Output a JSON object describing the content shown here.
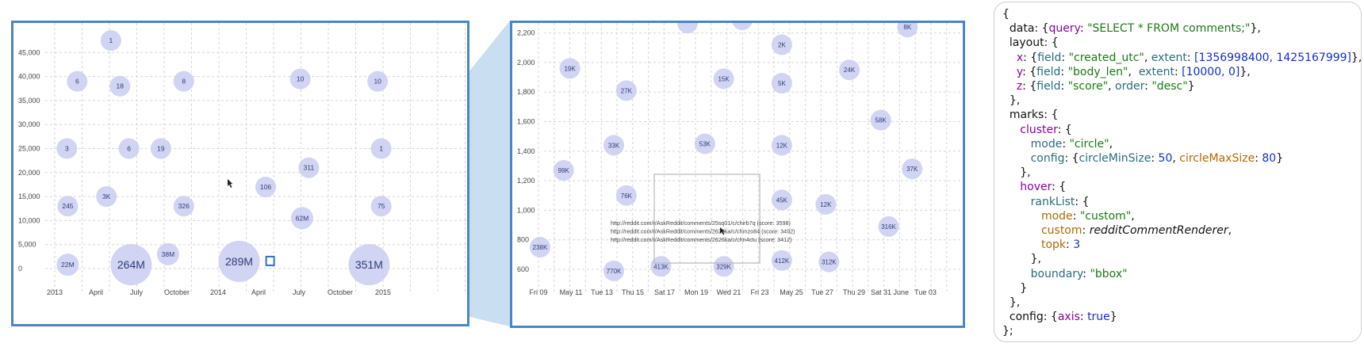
{
  "colors": {
    "panel_border": "#4a86c6",
    "bubble_fill": "#c9cdf0",
    "bubble_text": "#2f3a7a",
    "zoom_fill": "#bcd6ee"
  },
  "chart_data": [
    {
      "type": "scatter",
      "title": "",
      "xlabel": "",
      "ylabel": "",
      "ylim": [
        0,
        48000
      ],
      "grid": true,
      "x_ticks": [
        "2013",
        "April",
        "July",
        "October",
        "2014",
        "April",
        "July",
        "October",
        "2015"
      ],
      "y_ticks": [
        "0",
        "5,000",
        "10,000",
        "15,000",
        "20,000",
        "25,000",
        "30,000",
        "35,000",
        "40,000",
        "45,000"
      ],
      "points": [
        {
          "x": "2013-05-06",
          "y": 47500,
          "label": "1"
        },
        {
          "x": "2013-02-20",
          "y": 39000,
          "label": "6"
        },
        {
          "x": "2013-05-26",
          "y": 38000,
          "label": "18"
        },
        {
          "x": "2013-10-15",
          "y": 39000,
          "label": "8"
        },
        {
          "x": "2014-07-01",
          "y": 39500,
          "label": "10"
        },
        {
          "x": "2014-12-20",
          "y": 39000,
          "label": "10"
        },
        {
          "x": "2013-01-28",
          "y": 25000,
          "label": "3"
        },
        {
          "x": "2013-06-15",
          "y": 25000,
          "label": "6"
        },
        {
          "x": "2013-08-25",
          "y": 25000,
          "label": "19"
        },
        {
          "x": "2014-07-20",
          "y": 21000,
          "label": "311"
        },
        {
          "x": "2014-12-28",
          "y": 25000,
          "label": "1"
        },
        {
          "x": "2014-04-15",
          "y": 17000,
          "label": "106"
        },
        {
          "x": "2013-04-26",
          "y": 15000,
          "label": "3K"
        },
        {
          "x": "2013-01-30",
          "y": 13000,
          "label": "245"
        },
        {
          "x": "2013-10-15",
          "y": 13000,
          "label": "326"
        },
        {
          "x": "2014-07-05",
          "y": 10500,
          "label": "62M"
        },
        {
          "x": "2014-12-28",
          "y": 13000,
          "label": "75"
        },
        {
          "x": "2013-01-30",
          "y": 800,
          "label": "22M"
        },
        {
          "x": "2013-06-20",
          "y": 800,
          "label": "264M"
        },
        {
          "x": "2013-09-10",
          "y": 3000,
          "label": "38M"
        },
        {
          "x": "2014-02-15",
          "y": 1500,
          "label": "289M"
        },
        {
          "x": "2014-12-01",
          "y": 800,
          "label": "351M"
        }
      ],
      "selection": {
        "x": "2014-04-25",
        "y": 1500
      }
    },
    {
      "type": "scatter",
      "title": "",
      "xlabel": "",
      "ylabel": "",
      "ylim": [
        500,
        2270
      ],
      "grid": true,
      "x_ticks": [
        "Fri 09",
        "May 11",
        "Tue 13",
        "Thu 15",
        "Sat 17",
        "Mon 19",
        "Wed 21",
        "Fri 23",
        "May 25",
        "Tue 27",
        "Thu 29",
        "Sat 31 June",
        "Tue 03"
      ],
      "y_ticks": [
        "600",
        "800",
        "1,000",
        "1,200",
        "1,400",
        "1,600",
        "1,800",
        "2,000",
        "2,200"
      ],
      "points": [
        {
          "x": "May 11",
          "y": 1960,
          "label": "19K"
        },
        {
          "x": "May 24.5",
          "y": 2120,
          "label": "2K"
        },
        {
          "x": "June 1.5",
          "y": 2240,
          "label": "8K"
        },
        {
          "x": "May 14.6",
          "y": 1810,
          "label": "27K"
        },
        {
          "x": "May 20.8",
          "y": 1890,
          "label": "15K"
        },
        {
          "x": "May 24.5",
          "y": 1860,
          "label": "5K"
        },
        {
          "x": "May 28.8",
          "y": 1950,
          "label": "24K"
        },
        {
          "x": "May 30.8",
          "y": 1610,
          "label": "58K"
        },
        {
          "x": "May 13.8",
          "y": 1440,
          "label": "33K"
        },
        {
          "x": "May 19.6",
          "y": 1450,
          "label": "53K"
        },
        {
          "x": "May 24.5",
          "y": 1440,
          "label": "12K"
        },
        {
          "x": "May 10.6",
          "y": 1270,
          "label": "99K"
        },
        {
          "x": "June 1.8",
          "y": 1280,
          "label": "37K"
        },
        {
          "x": "May 14.6",
          "y": 1100,
          "label": "76K"
        },
        {
          "x": "May 24.5",
          "y": 1070,
          "label": "45K"
        },
        {
          "x": "May 27.3",
          "y": 1040,
          "label": "12K"
        },
        {
          "x": "May 31.3",
          "y": 890,
          "label": "316K"
        },
        {
          "x": "May 9.1",
          "y": 750,
          "label": "238K"
        },
        {
          "x": "May 24.5",
          "y": 660,
          "label": "412K"
        },
        {
          "x": "May 27.5",
          "y": 650,
          "label": "312K"
        },
        {
          "x": "May 13.8",
          "y": 590,
          "label": "770K"
        },
        {
          "x": "May 16.8",
          "y": 620,
          "label": "413K"
        },
        {
          "x": "May 20.8",
          "y": 620,
          "label": "329K"
        }
      ],
      "hover_list": [
        "http://reddit.com/r/AskReddit/comments/25sq01/c/chirb7q (score: 3598)",
        "http://reddit.com/r/AskReddit/comments/2626ka/c/chmzo84 (score: 3492)",
        "http://reddit.com/r/AskReddit/comments/2626ka/c/chn4ctu (score: 3412)"
      ]
    }
  ],
  "code": {
    "query": "\"SELECT * FROM comments;\"",
    "x_field": "\"created_utc\"",
    "x_extent": "[1356998400, 1425167999]",
    "y_field": "\"body_len\"",
    "y_extent": "[10000, 0]",
    "z_field": "\"score\"",
    "z_order": "\"desc\"",
    "cluster_mode": "\"circle\"",
    "circle_min": "50",
    "circle_max": "80",
    "rank_mode": "\"custom\"",
    "renderer": "redditCommentRenderer",
    "topk": "3",
    "boundary": "\"bbox\"",
    "axis": "true"
  }
}
